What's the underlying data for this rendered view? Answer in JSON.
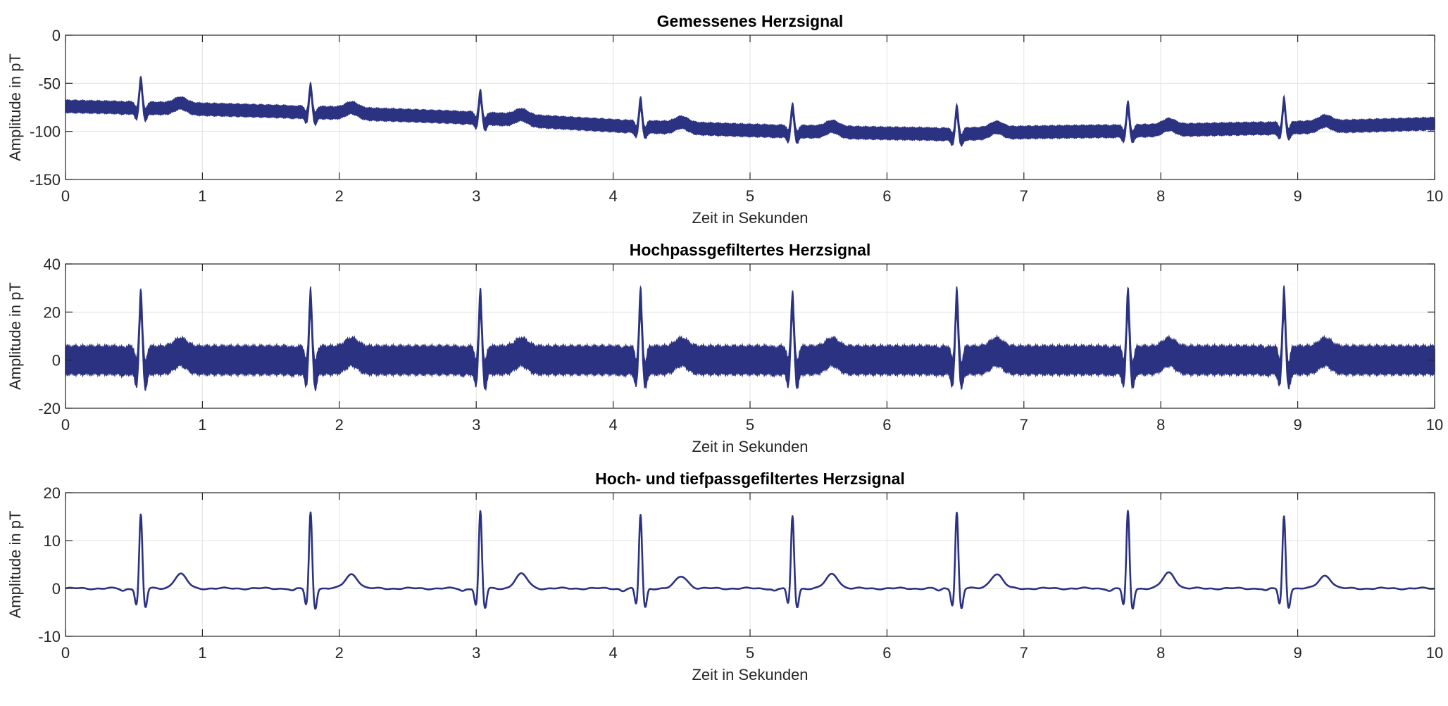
{
  "chart_data": [
    {
      "type": "line",
      "title": "Gemessenes Herzsignal",
      "xlabel": "Zeit in Sekunden",
      "ylabel": "Amplitude in pT",
      "xlim": [
        0,
        10
      ],
      "ylim": [
        -150,
        0
      ],
      "xticks": [
        0,
        1,
        2,
        3,
        4,
        5,
        6,
        7,
        8,
        9,
        10
      ],
      "yticks": [
        -150,
        -100,
        -50,
        0
      ],
      "grid": true,
      "band_halfwidth": 6,
      "r_peak_times": [
        0.55,
        1.79,
        3.03,
        4.2,
        5.31,
        6.51,
        7.76,
        8.9
      ],
      "r_peak_values": [
        -48,
        -55,
        -62,
        -70,
        -76,
        -78,
        -74,
        -70
      ],
      "t_wave_times": [
        0.84,
        2.09,
        3.33,
        4.5,
        5.6,
        6.8,
        8.06,
        9.2
      ],
      "baseline": {
        "x": [
          0,
          1,
          2,
          3,
          4,
          5,
          6,
          6.5,
          7,
          8,
          9,
          10
        ],
        "y": [
          -74,
          -77,
          -81,
          -86,
          -94,
          -99,
          -102,
          -103,
          -101,
          -99,
          -96,
          -92
        ]
      },
      "series": [
        {
          "color": "#2b3282"
        }
      ]
    },
    {
      "type": "line",
      "title": "Hochpassgefiltertes Herzsignal",
      "xlabel": "Zeit in Sekunden",
      "ylabel": "Amplitude in pT",
      "xlim": [
        0,
        10
      ],
      "ylim": [
        -20,
        40
      ],
      "xticks": [
        0,
        1,
        2,
        3,
        4,
        5,
        6,
        7,
        8,
        9,
        10
      ],
      "yticks": [
        -20,
        0,
        20,
        40
      ],
      "grid": true,
      "band_halfwidth": 5.5,
      "r_peak_times": [
        0.55,
        1.79,
        3.03,
        4.2,
        5.31,
        6.51,
        7.76,
        8.9
      ],
      "r_peak_values": [
        25,
        25,
        25,
        25,
        24,
        25,
        25,
        25
      ],
      "t_wave_times": [
        0.84,
        2.09,
        3.33,
        4.5,
        5.6,
        6.8,
        8.06,
        9.2
      ],
      "baseline": {
        "x": [
          0,
          10
        ],
        "y": [
          0,
          0
        ]
      },
      "series": [
        {
          "color": "#2b3282"
        }
      ]
    },
    {
      "type": "line",
      "title": "Hoch- und tiefpassgefiltertes Herzsignal",
      "xlabel": "Zeit in Sekunden",
      "ylabel": "Amplitude in pT",
      "xlim": [
        0,
        10
      ],
      "ylim": [
        -10,
        20
      ],
      "xticks": [
        0,
        1,
        2,
        3,
        4,
        5,
        6,
        7,
        8,
        9,
        10
      ],
      "yticks": [
        -10,
        0,
        10,
        20
      ],
      "grid": true,
      "band_halfwidth": 0,
      "r_peak_times": [
        0.55,
        1.79,
        3.03,
        4.2,
        5.31,
        6.51,
        7.76,
        8.9
      ],
      "r_peak_values": [
        15.5,
        16,
        16.2,
        15.5,
        15.2,
        16,
        16.2,
        15.2
      ],
      "t_wave_times": [
        0.84,
        2.09,
        3.33,
        4.5,
        5.6,
        6.8,
        8.06,
        9.2
      ],
      "t_wave_values": [
        3,
        3,
        3,
        2.5,
        3,
        3,
        3.3,
        2.7
      ],
      "baseline": {
        "x": [
          0,
          10
        ],
        "y": [
          0,
          0
        ]
      },
      "series": [
        {
          "color": "#2b3282"
        }
      ]
    }
  ]
}
